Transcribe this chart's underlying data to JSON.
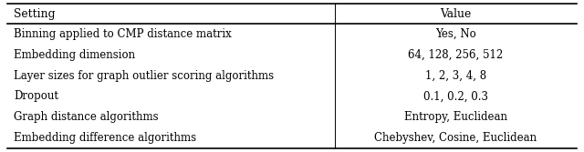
{
  "headers": [
    "Setting",
    "Value"
  ],
  "rows": [
    [
      "Binning applied to CMP distance matrix",
      "Yes, No"
    ],
    [
      "Embedding dimension",
      "64, 128, 256, 512"
    ],
    [
      "Layer sizes for graph outlier scoring algorithms",
      "1, 2, 3, 4, 8"
    ],
    [
      "Dropout",
      "0.1, 0.2, 0.3"
    ],
    [
      "Graph distance algorithms",
      "Entropy, Euclidean"
    ],
    [
      "Embedding difference algorithms",
      "Chebyshev, Cosine, Euclidean"
    ]
  ],
  "col_split": 0.575,
  "bg_color": "#ffffff",
  "line_color": "#000000",
  "font_size": 8.5,
  "header_font_size": 8.8,
  "figsize": [
    6.4,
    1.67
  ],
  "dpi": 100
}
